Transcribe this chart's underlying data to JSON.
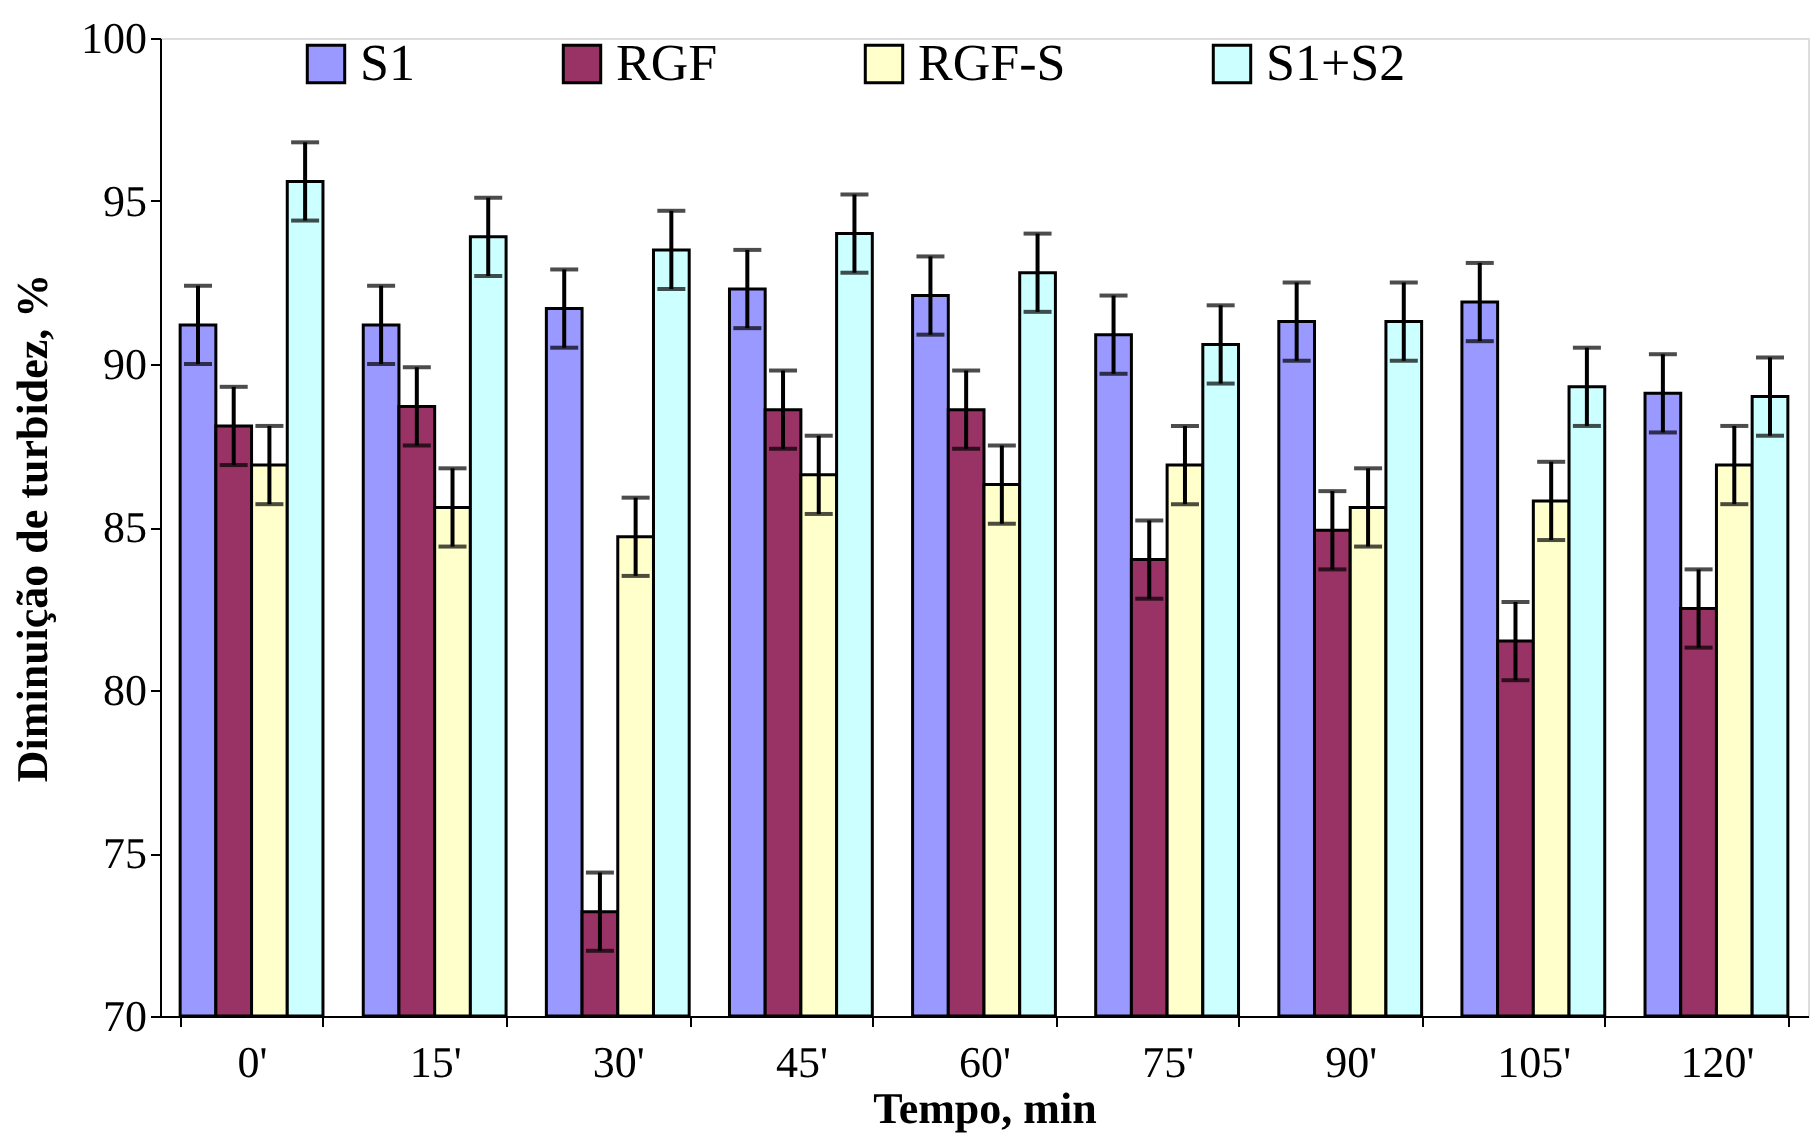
{
  "chart_data": {
    "type": "bar",
    "xlabel": "Tempo, min",
    "ylabel": "Diminuição de turbidez, %",
    "categories": [
      "0'",
      "15'",
      "30'",
      "45'",
      "60'",
      "75'",
      "90'",
      "105'",
      "120'"
    ],
    "series": [
      {
        "name": "S1",
        "color": "#9999ff",
        "values": [
          91.2,
          91.2,
          91.7,
          92.3,
          92.1,
          90.9,
          91.3,
          91.9,
          89.1
        ],
        "errors": [
          1.2,
          1.2,
          1.2,
          1.2,
          1.2,
          1.2,
          1.2,
          1.2,
          1.2
        ]
      },
      {
        "name": "RGF",
        "color": "#993366",
        "values": [
          88.1,
          88.7,
          73.2,
          88.6,
          88.6,
          84.0,
          84.9,
          81.5,
          82.5
        ],
        "errors": [
          1.2,
          1.2,
          1.2,
          1.2,
          1.2,
          1.2,
          1.2,
          1.2,
          1.2
        ]
      },
      {
        "name": "RGF-S",
        "color": "#ffffcc",
        "values": [
          86.9,
          85.6,
          84.7,
          86.6,
          86.3,
          86.9,
          85.6,
          85.8,
          86.9
        ],
        "errors": [
          1.2,
          1.2,
          1.2,
          1.2,
          1.2,
          1.2,
          1.2,
          1.2,
          1.2
        ]
      },
      {
        "name": "S1+S2",
        "color": "#ccffff",
        "values": [
          95.6,
          93.9,
          93.5,
          94.0,
          92.8,
          90.6,
          91.3,
          89.3,
          89.0
        ],
        "errors": [
          1.2,
          1.2,
          1.2,
          1.2,
          1.2,
          1.2,
          1.2,
          1.2,
          1.2
        ]
      }
    ],
    "ylim": [
      70,
      100
    ],
    "yticks": [
      70,
      75,
      80,
      85,
      90,
      95,
      100
    ],
    "grid": false,
    "legend": "top"
  }
}
